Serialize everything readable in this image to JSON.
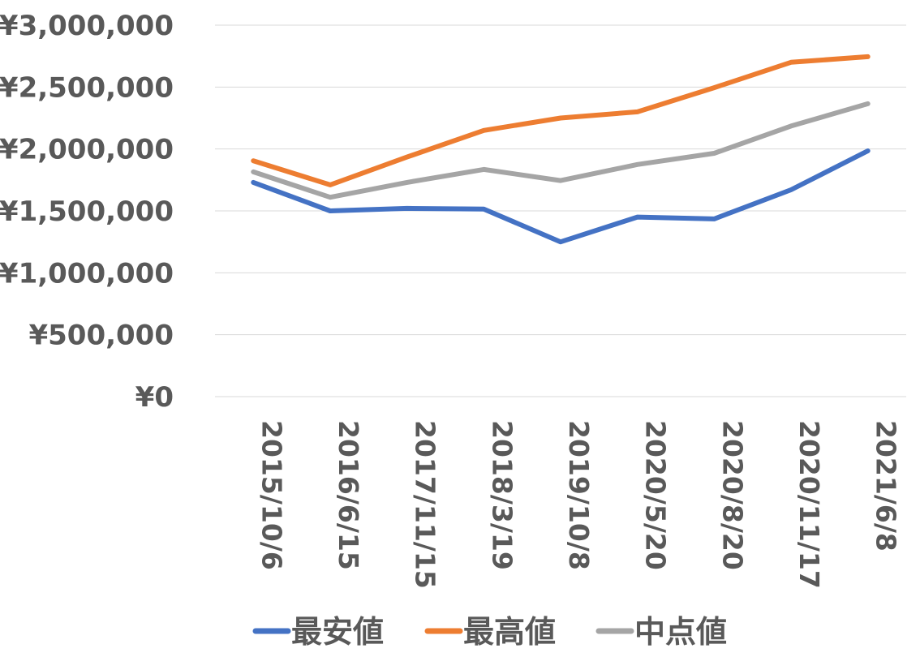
{
  "chart_data": {
    "type": "line",
    "title": "",
    "xlabel": "",
    "ylabel": "",
    "categories": [
      "2015/10/6",
      "2016/6/15",
      "2017/11/15",
      "2018/3/19",
      "2019/10/8",
      "2020/5/20",
      "2020/8/20",
      "2020/11/17",
      "2021/6/8"
    ],
    "ylim": [
      0,
      3000000
    ],
    "yticks": [
      0,
      500000,
      1000000,
      1500000,
      2000000,
      2500000,
      3000000
    ],
    "ytick_labels": [
      "¥0",
      "¥500,000",
      "¥1,000,000",
      "¥1,500,000",
      "¥2,000,000",
      "¥2,500,000",
      "¥3,000,000"
    ],
    "grid": true,
    "legend_position": "bottom",
    "series": [
      {
        "name": "最安値",
        "color": "#4472c4",
        "values": [
          1730000,
          1500000,
          1520000,
          1515000,
          1250000,
          1450000,
          1435000,
          1670000,
          1985000
        ]
      },
      {
        "name": "最高値",
        "color": "#ed7d31",
        "values": [
          1905000,
          1710000,
          1935000,
          2150000,
          2250000,
          2300000,
          2495000,
          2700000,
          2745000
        ]
      },
      {
        "name": "中点値",
        "color": "#a5a5a5",
        "values": [
          1815000,
          1610000,
          1730000,
          1835000,
          1745000,
          1875000,
          1965000,
          2185000,
          2365000
        ]
      }
    ]
  }
}
